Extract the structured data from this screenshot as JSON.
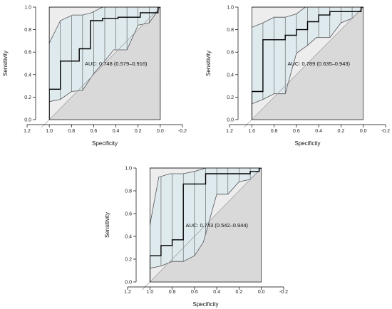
{
  "colors": {
    "plot_background": "#ededed",
    "lower_region": "#d9d9d9",
    "ci_band": "#dde9ee",
    "ci_outline": "#555555",
    "roc_line": "#000000",
    "diagonal": "#999999",
    "axis": "#000000"
  },
  "chart_data": [
    {
      "type": "line",
      "xlabel": "Specificity",
      "ylabel": "Sensitivity",
      "xlim": [
        1.2,
        -0.2
      ],
      "ylim": [
        0.0,
        1.0
      ],
      "x_ticks": [
        "1.2",
        "1.0",
        "0.8",
        "0.6",
        "0.4",
        "0.2",
        "0.0",
        "-0.2"
      ],
      "y_ticks": [
        "0.0",
        "0.2",
        "0.4",
        "0.6",
        "0.8",
        "1.0"
      ],
      "diagonal": true,
      "auc_label": "AUC: 0.748 (0.579–0.916)",
      "auc_label_at": [
        0.5,
        0.48
      ],
      "roc": [
        [
          1.0,
          0.0
        ],
        [
          1.0,
          0.27
        ],
        [
          0.9,
          0.27
        ],
        [
          0.9,
          0.52
        ],
        [
          0.73,
          0.52
        ],
        [
          0.73,
          0.63
        ],
        [
          0.63,
          0.63
        ],
        [
          0.63,
          0.88
        ],
        [
          0.52,
          0.88
        ],
        [
          0.52,
          0.9
        ],
        [
          0.38,
          0.9
        ],
        [
          0.38,
          0.91
        ],
        [
          0.18,
          0.91
        ],
        [
          0.18,
          0.95
        ],
        [
          0.02,
          0.95
        ],
        [
          0.02,
          1.0
        ],
        [
          0.0,
          1.0
        ]
      ],
      "ci_upper": [
        [
          1.0,
          0.68
        ],
        [
          0.9,
          0.88
        ],
        [
          0.79,
          0.93
        ],
        [
          0.7,
          0.93
        ],
        [
          0.62,
          0.95
        ],
        [
          0.52,
          1.0
        ],
        [
          0.0,
          1.0
        ]
      ],
      "ci_lower": [
        [
          1.0,
          0.16
        ],
        [
          0.9,
          0.18
        ],
        [
          0.8,
          0.25
        ],
        [
          0.7,
          0.26
        ],
        [
          0.6,
          0.41
        ],
        [
          0.5,
          0.52
        ],
        [
          0.42,
          0.62
        ],
        [
          0.3,
          0.62
        ],
        [
          0.2,
          0.84
        ],
        [
          0.1,
          0.86
        ],
        [
          0.0,
          1.0
        ]
      ],
      "ci_markers_x": [
        0.9,
        0.8,
        0.7,
        0.6,
        0.5,
        0.4,
        0.3,
        0.2,
        0.1
      ]
    },
    {
      "type": "line",
      "xlabel": "Specificity",
      "ylabel": "Sensitivity",
      "xlim": [
        1.2,
        -0.2
      ],
      "ylim": [
        0.0,
        1.0
      ],
      "x_ticks": [
        "1.2",
        "1.0",
        "0.8",
        "0.6",
        "0.4",
        "0.2",
        "0.0",
        "-0.2"
      ],
      "y_ticks": [
        "0.0",
        "0.2",
        "0.4",
        "0.6",
        "0.8",
        "1.0"
      ],
      "diagonal": true,
      "auc_label": "AUC: 0.789 (0.635–0.943)",
      "auc_label_at": [
        0.5,
        0.48
      ],
      "roc": [
        [
          1.0,
          0.0
        ],
        [
          1.0,
          0.25
        ],
        [
          0.9,
          0.25
        ],
        [
          0.9,
          0.71
        ],
        [
          0.7,
          0.71
        ],
        [
          0.7,
          0.75
        ],
        [
          0.6,
          0.75
        ],
        [
          0.6,
          0.8
        ],
        [
          0.5,
          0.8
        ],
        [
          0.5,
          0.87
        ],
        [
          0.4,
          0.87
        ],
        [
          0.4,
          0.93
        ],
        [
          0.3,
          0.93
        ],
        [
          0.3,
          0.96
        ],
        [
          0.02,
          0.96
        ],
        [
          0.02,
          1.0
        ],
        [
          0.0,
          1.0
        ]
      ],
      "ci_upper": [
        [
          1.0,
          0.82
        ],
        [
          0.9,
          0.86
        ],
        [
          0.8,
          0.91
        ],
        [
          0.7,
          0.91
        ],
        [
          0.6,
          0.94
        ],
        [
          0.52,
          1.0
        ],
        [
          0.0,
          1.0
        ]
      ],
      "ci_lower": [
        [
          1.0,
          0.14
        ],
        [
          0.9,
          0.18
        ],
        [
          0.8,
          0.23
        ],
        [
          0.7,
          0.23
        ],
        [
          0.6,
          0.59
        ],
        [
          0.5,
          0.66
        ],
        [
          0.42,
          0.73
        ],
        [
          0.3,
          0.73
        ],
        [
          0.2,
          0.86
        ],
        [
          0.1,
          0.9
        ],
        [
          0.0,
          1.0
        ]
      ],
      "ci_markers_x": [
        0.9,
        0.8,
        0.7,
        0.6,
        0.5,
        0.4,
        0.3,
        0.2,
        0.1
      ]
    },
    {
      "type": "line",
      "xlabel": "Specificity",
      "ylabel": "Sensitivity",
      "xlim": [
        1.2,
        -0.2
      ],
      "ylim": [
        0.0,
        1.0
      ],
      "x_ticks": [
        "1.2",
        "1.0",
        "0.8",
        "0.6",
        "0.4",
        "0.2",
        "0.0",
        "-0.2"
      ],
      "y_ticks": [
        "0.0",
        "0.2",
        "0.4",
        "0.6",
        "0.8",
        "1.0"
      ],
      "diagonal": true,
      "auc_label": "AUC: 0.743 (0.542–0.944)",
      "auc_label_at": [
        0.5,
        0.48
      ],
      "roc": [
        [
          1.0,
          0.0
        ],
        [
          1.0,
          0.23
        ],
        [
          0.9,
          0.23
        ],
        [
          0.9,
          0.32
        ],
        [
          0.8,
          0.32
        ],
        [
          0.8,
          0.37
        ],
        [
          0.7,
          0.37
        ],
        [
          0.7,
          0.86
        ],
        [
          0.5,
          0.86
        ],
        [
          0.5,
          0.95
        ],
        [
          0.1,
          0.95
        ],
        [
          0.1,
          0.97
        ],
        [
          0.02,
          0.97
        ],
        [
          0.02,
          1.0
        ],
        [
          0.0,
          1.0
        ]
      ],
      "ci_upper": [
        [
          1.0,
          0.5
        ],
        [
          0.92,
          0.92
        ],
        [
          0.82,
          0.95
        ],
        [
          0.7,
          0.95
        ],
        [
          0.6,
          0.97
        ],
        [
          0.5,
          1.0
        ],
        [
          0.0,
          1.0
        ]
      ],
      "ci_lower": [
        [
          1.0,
          0.12
        ],
        [
          0.9,
          0.14
        ],
        [
          0.8,
          0.18
        ],
        [
          0.7,
          0.18
        ],
        [
          0.6,
          0.23
        ],
        [
          0.52,
          0.35
        ],
        [
          0.4,
          0.77
        ],
        [
          0.3,
          0.77
        ],
        [
          0.2,
          0.88
        ],
        [
          0.1,
          0.9
        ],
        [
          0.0,
          1.0
        ]
      ],
      "ci_markers_x": [
        0.9,
        0.8,
        0.7,
        0.6,
        0.5,
        0.4,
        0.3,
        0.2,
        0.1
      ]
    }
  ]
}
